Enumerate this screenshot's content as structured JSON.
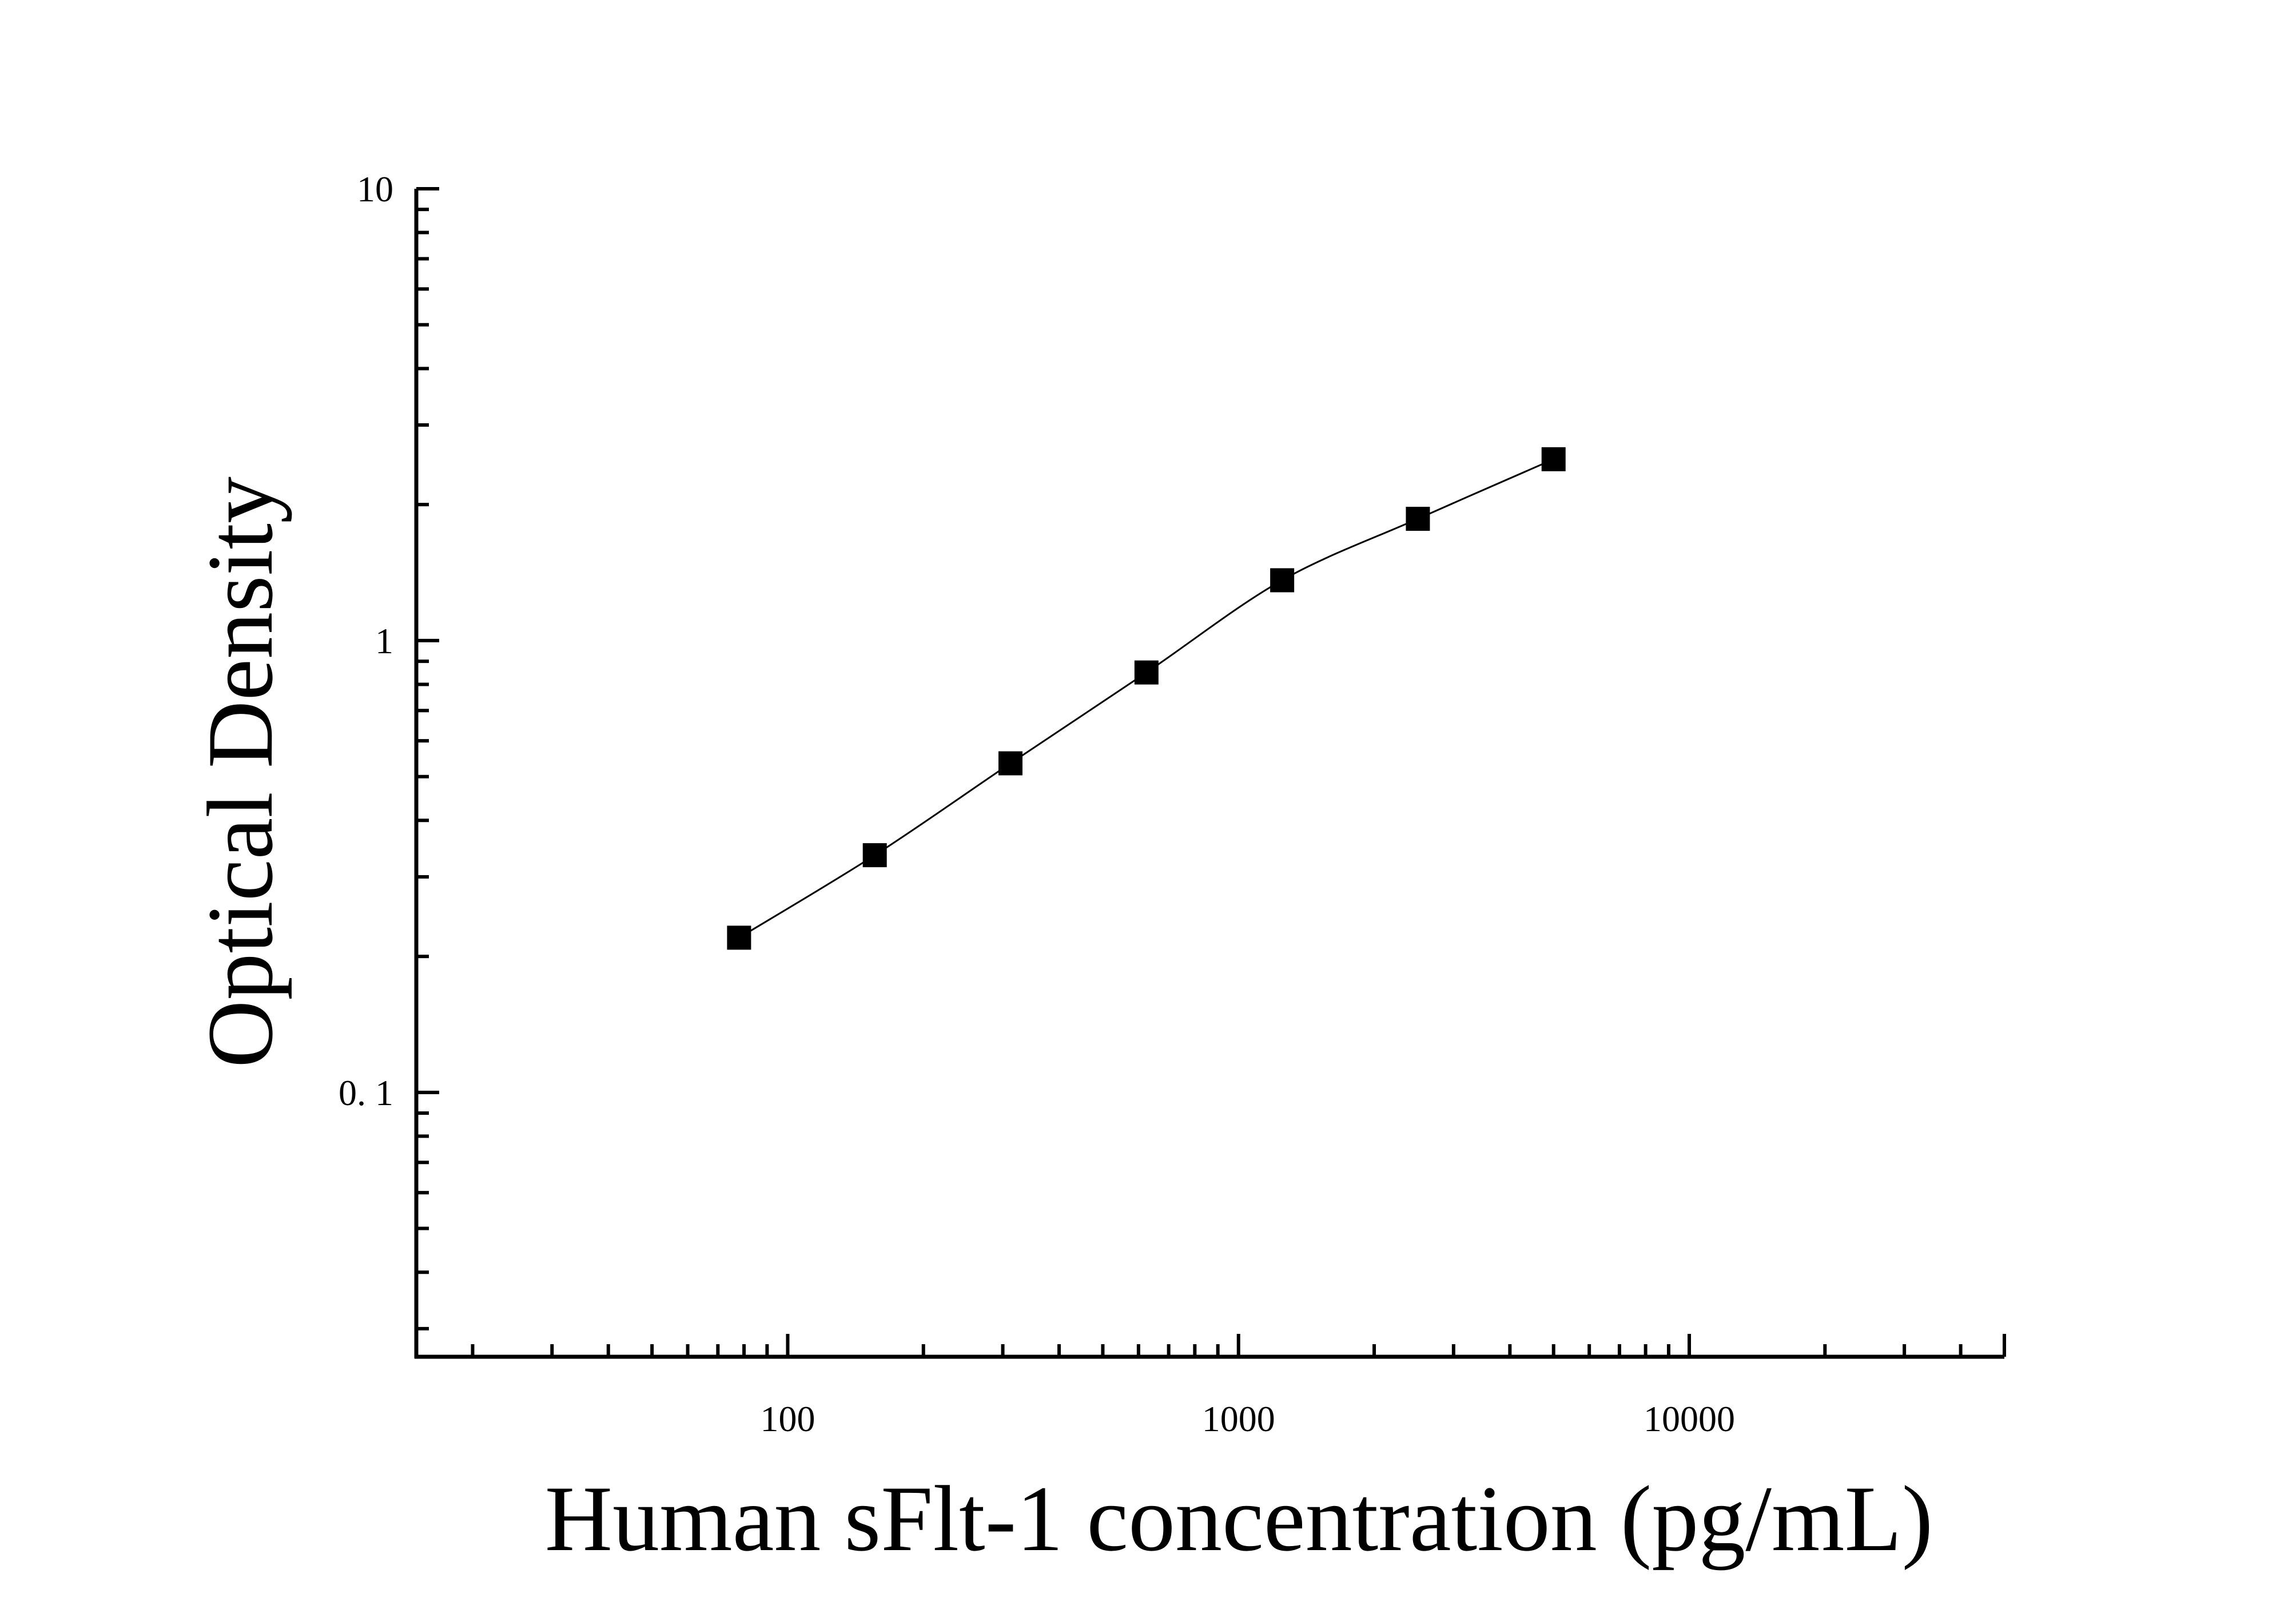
{
  "chart_data": {
    "type": "scatter",
    "title": "",
    "xlabel": "Human sFlt-1 concentration (pg/mL)",
    "ylabel": "Optical Density",
    "x_scale": "log",
    "y_scale": "log",
    "xlim": [
      15,
      50000
    ],
    "ylim": [
      0.026,
      10
    ],
    "x_ticks": [
      {
        "value": 100,
        "label": "100"
      },
      {
        "value": 1000,
        "label": "1000"
      },
      {
        "value": 10000,
        "label": "10000"
      }
    ],
    "y_ticks": [
      {
        "value": 0.1,
        "label": "0. 1"
      },
      {
        "value": 1,
        "label": "1"
      },
      {
        "value": 10,
        "label": "10"
      }
    ],
    "grid": false,
    "legend": "none",
    "series": [
      {
        "marker": "square",
        "color": "#000000",
        "fit_line": true,
        "x": [
          78,
          156,
          312,
          625,
          1250,
          2500,
          5000
        ],
        "y": [
          0.22,
          0.335,
          0.535,
          0.85,
          1.36,
          1.86,
          2.52
        ]
      }
    ]
  }
}
